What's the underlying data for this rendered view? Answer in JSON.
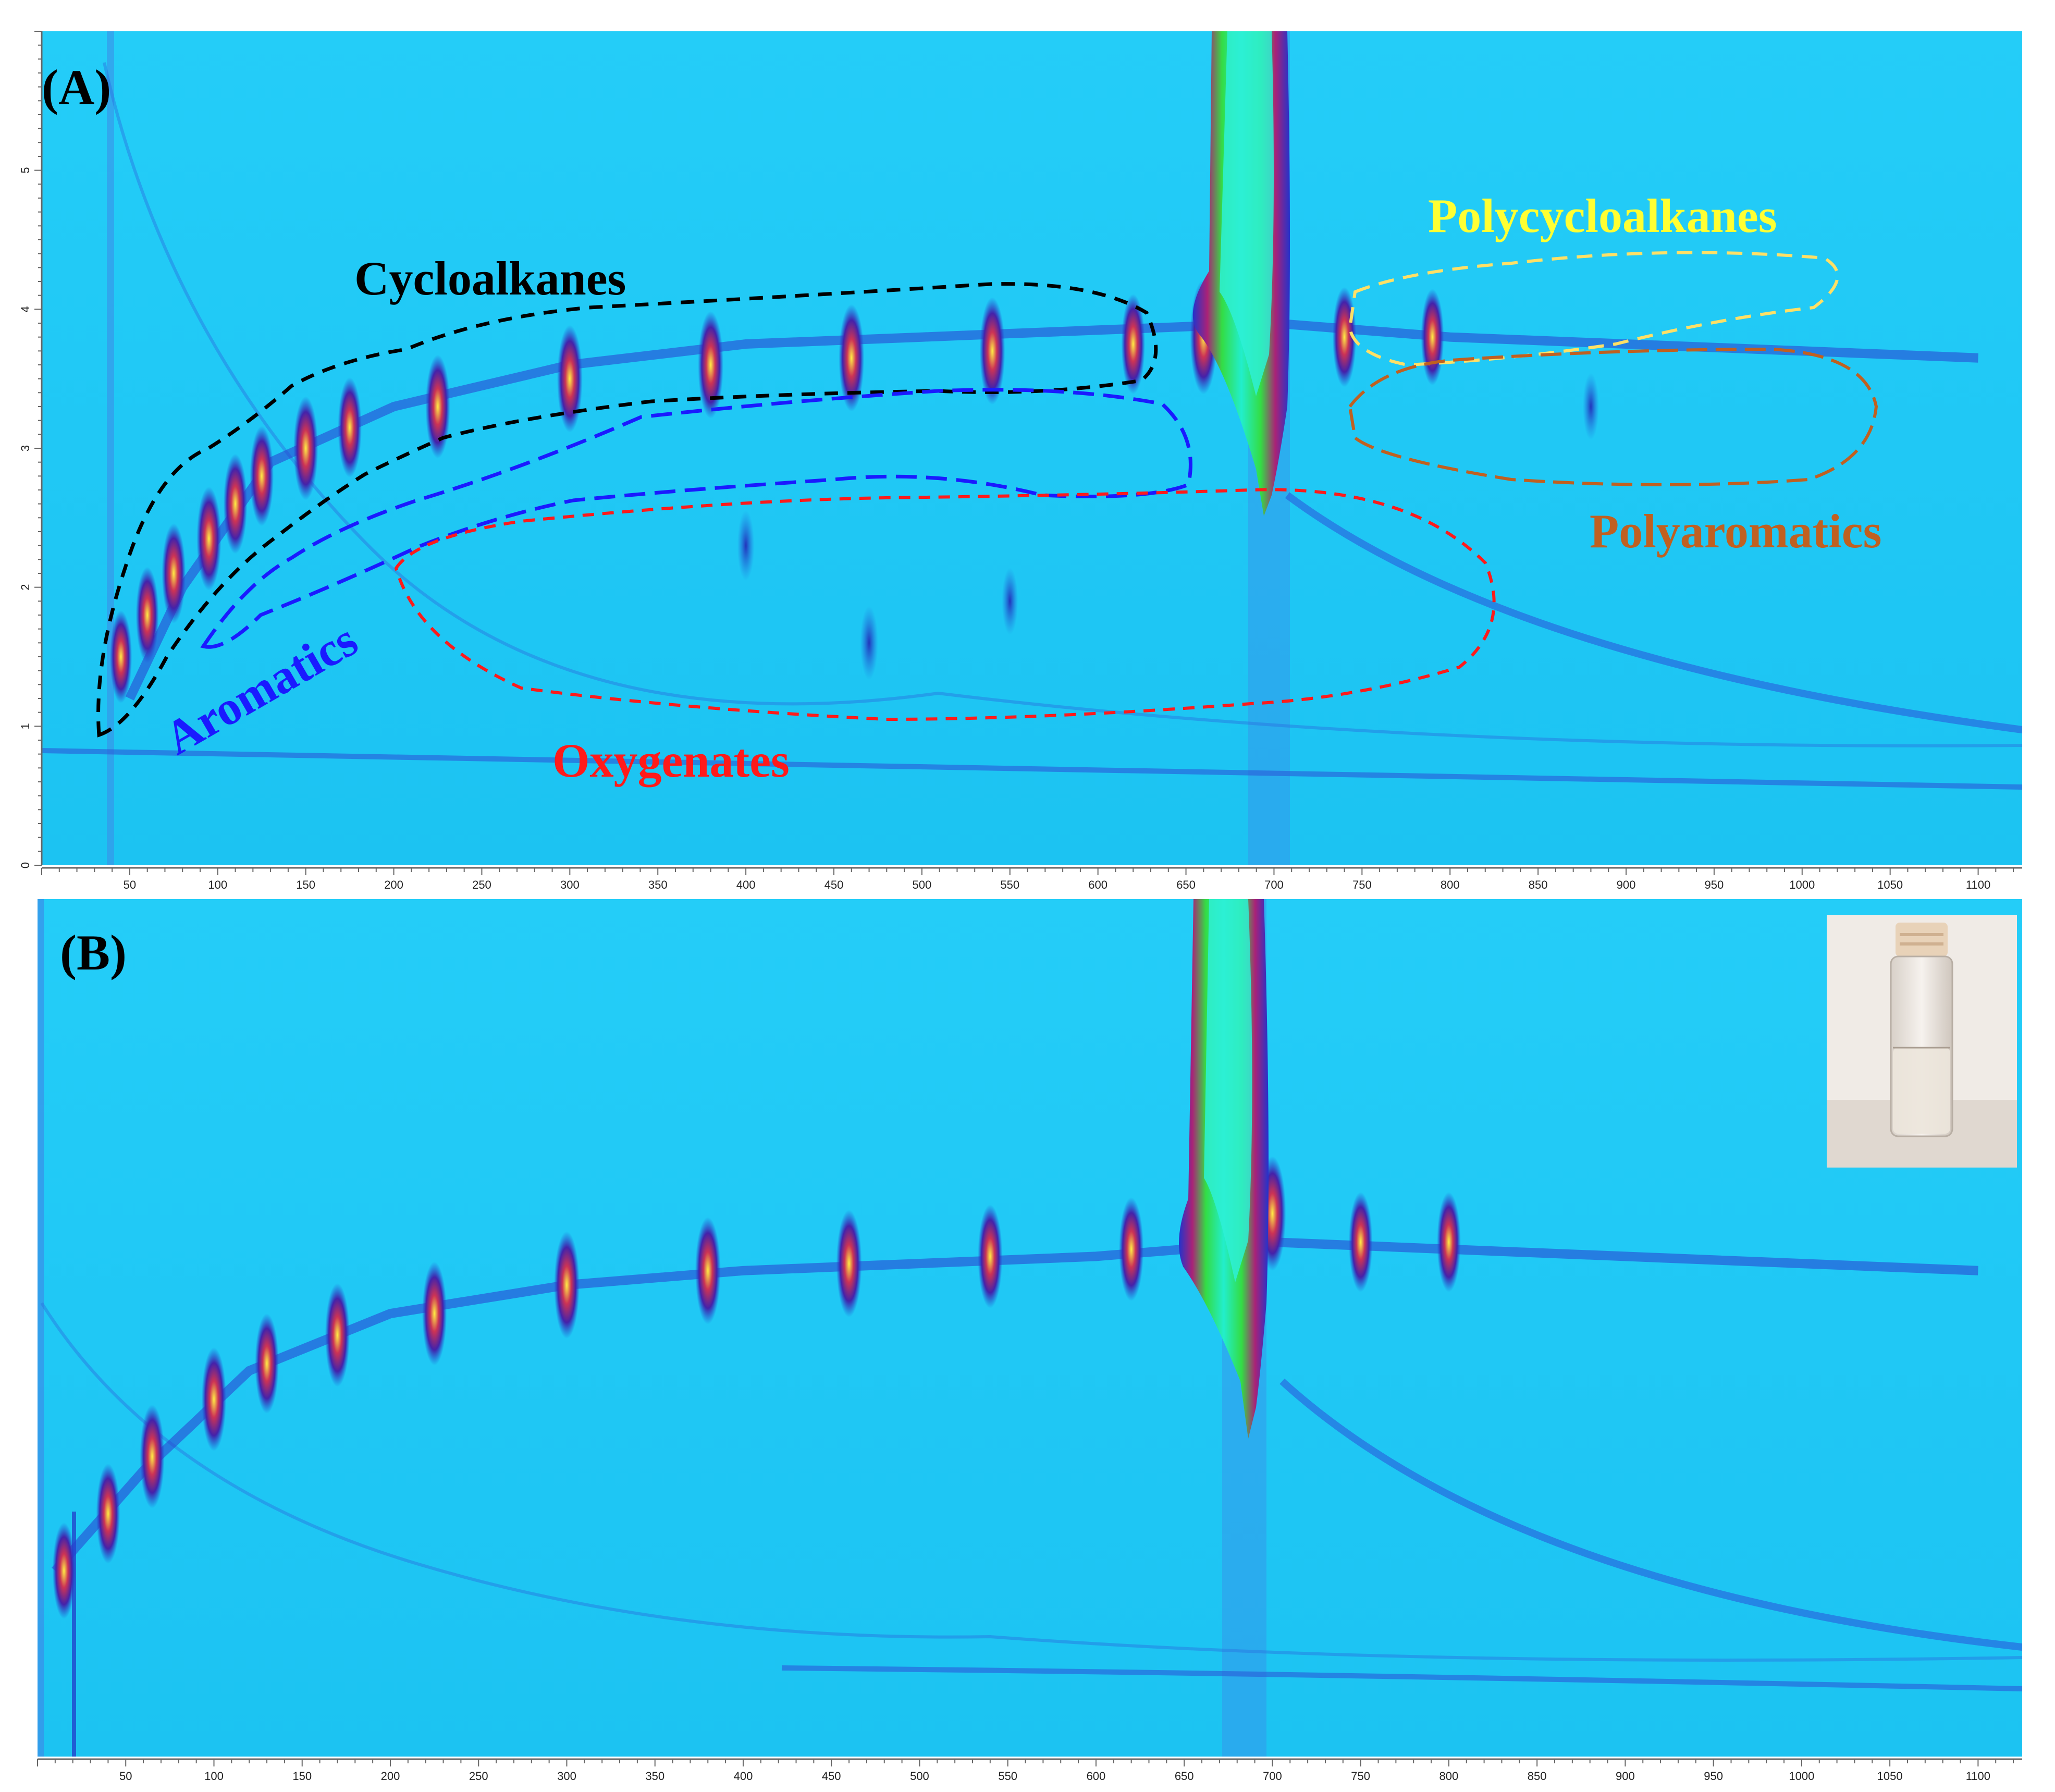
{
  "chart_data": [
    {
      "type": "heatmap",
      "panel_label": "(A)",
      "xlim": [
        0,
        1125
      ],
      "ylim": [
        0,
        6
      ],
      "x_tick_labels": [
        "50",
        "100",
        "150",
        "200",
        "250",
        "300",
        "350",
        "400",
        "450",
        "500",
        "550",
        "600",
        "650",
        "700",
        "750",
        "800",
        "850",
        "900",
        "950",
        "1000",
        "1050",
        "1100"
      ],
      "y_tick_labels": [
        "0",
        "1",
        "2",
        "3",
        "4",
        "5"
      ],
      "background_color": "#1ec8f5",
      "regions": [
        {
          "name": "Cycloalkanes",
          "color": "#000000"
        },
        {
          "name": "Aromatics",
          "color": "#1a1aff"
        },
        {
          "name": "Oxygenates",
          "color": "#ff1a1a"
        },
        {
          "name": "Polycycloalkanes",
          "color": "#ffff33"
        },
        {
          "name": "Polyaromatics",
          "color": "#c06020"
        }
      ],
      "main_band": [
        {
          "x": 50,
          "y": 1.2
        },
        {
          "x": 80,
          "y": 2.0
        },
        {
          "x": 130,
          "y": 2.9
        },
        {
          "x": 200,
          "y": 3.3
        },
        {
          "x": 300,
          "y": 3.6
        },
        {
          "x": 400,
          "y": 3.75
        },
        {
          "x": 500,
          "y": 3.8
        },
        {
          "x": 600,
          "y": 3.85
        },
        {
          "x": 700,
          "y": 3.9
        },
        {
          "x": 800,
          "y": 3.8
        },
        {
          "x": 900,
          "y": 3.75
        },
        {
          "x": 1000,
          "y": 3.7
        },
        {
          "x": 1100,
          "y": 3.65
        }
      ],
      "peaks": [
        {
          "x": 45,
          "y": 1.5,
          "i": 0.7
        },
        {
          "x": 60,
          "y": 1.8,
          "i": 0.75
        },
        {
          "x": 75,
          "y": 2.1,
          "i": 0.8
        },
        {
          "x": 95,
          "y": 2.35,
          "i": 0.85
        },
        {
          "x": 110,
          "y": 2.6,
          "i": 0.8
        },
        {
          "x": 125,
          "y": 2.8,
          "i": 0.8
        },
        {
          "x": 150,
          "y": 3.0,
          "i": 0.85
        },
        {
          "x": 175,
          "y": 3.15,
          "i": 0.8
        },
        {
          "x": 225,
          "y": 3.3,
          "i": 0.85
        },
        {
          "x": 300,
          "y": 3.5,
          "i": 0.9
        },
        {
          "x": 380,
          "y": 3.6,
          "i": 0.9
        },
        {
          "x": 460,
          "y": 3.65,
          "i": 0.9
        },
        {
          "x": 540,
          "y": 3.7,
          "i": 0.9
        },
        {
          "x": 620,
          "y": 3.75,
          "i": 0.8
        },
        {
          "x": 660,
          "y": 3.8,
          "i": 1.0
        },
        {
          "x": 700,
          "y": 4.1,
          "i": 1.0
        },
        {
          "x": 740,
          "y": 3.8,
          "i": 0.8
        },
        {
          "x": 790,
          "y": 3.8,
          "i": 0.75
        },
        {
          "x": 400,
          "y": 2.3,
          "i": 0.4
        },
        {
          "x": 470,
          "y": 1.6,
          "i": 0.45
        },
        {
          "x": 550,
          "y": 1.9,
          "i": 0.35
        },
        {
          "x": 880,
          "y": 3.3,
          "i": 0.35
        }
      ]
    },
    {
      "type": "heatmap",
      "panel_label": "(B)",
      "xlim": [
        0,
        1125
      ],
      "ylim": [
        0,
        6
      ],
      "x_tick_labels": [
        "50",
        "100",
        "150",
        "200",
        "250",
        "300",
        "350",
        "400",
        "450",
        "500",
        "550",
        "600",
        "650",
        "700",
        "750",
        "800",
        "850",
        "900",
        "950",
        "1000",
        "1050",
        "1100"
      ],
      "background_color": "#1ec8f5",
      "inset": "vial-photo",
      "main_band": [
        {
          "x": 10,
          "y": 1.3
        },
        {
          "x": 60,
          "y": 2.0
        },
        {
          "x": 120,
          "y": 2.7
        },
        {
          "x": 200,
          "y": 3.1
        },
        {
          "x": 300,
          "y": 3.3
        },
        {
          "x": 400,
          "y": 3.4
        },
        {
          "x": 500,
          "y": 3.45
        },
        {
          "x": 600,
          "y": 3.5
        },
        {
          "x": 700,
          "y": 3.6
        },
        {
          "x": 800,
          "y": 3.55
        },
        {
          "x": 900,
          "y": 3.5
        },
        {
          "x": 1000,
          "y": 3.45
        },
        {
          "x": 1100,
          "y": 3.4
        }
      ],
      "peaks": [
        {
          "x": 15,
          "y": 1.3,
          "i": 0.75
        },
        {
          "x": 40,
          "y": 1.7,
          "i": 0.8
        },
        {
          "x": 65,
          "y": 2.1,
          "i": 0.85
        },
        {
          "x": 100,
          "y": 2.5,
          "i": 0.85
        },
        {
          "x": 130,
          "y": 2.75,
          "i": 0.8
        },
        {
          "x": 170,
          "y": 2.95,
          "i": 0.85
        },
        {
          "x": 225,
          "y": 3.1,
          "i": 0.85
        },
        {
          "x": 300,
          "y": 3.3,
          "i": 0.9
        },
        {
          "x": 380,
          "y": 3.4,
          "i": 0.9
        },
        {
          "x": 460,
          "y": 3.45,
          "i": 0.9
        },
        {
          "x": 540,
          "y": 3.5,
          "i": 0.85
        },
        {
          "x": 620,
          "y": 3.55,
          "i": 0.85
        },
        {
          "x": 670,
          "y": 3.6,
          "i": 1.0
        },
        {
          "x": 700,
          "y": 3.8,
          "i": 1.0
        },
        {
          "x": 750,
          "y": 3.6,
          "i": 0.8
        },
        {
          "x": 800,
          "y": 3.6,
          "i": 0.8
        }
      ]
    }
  ]
}
